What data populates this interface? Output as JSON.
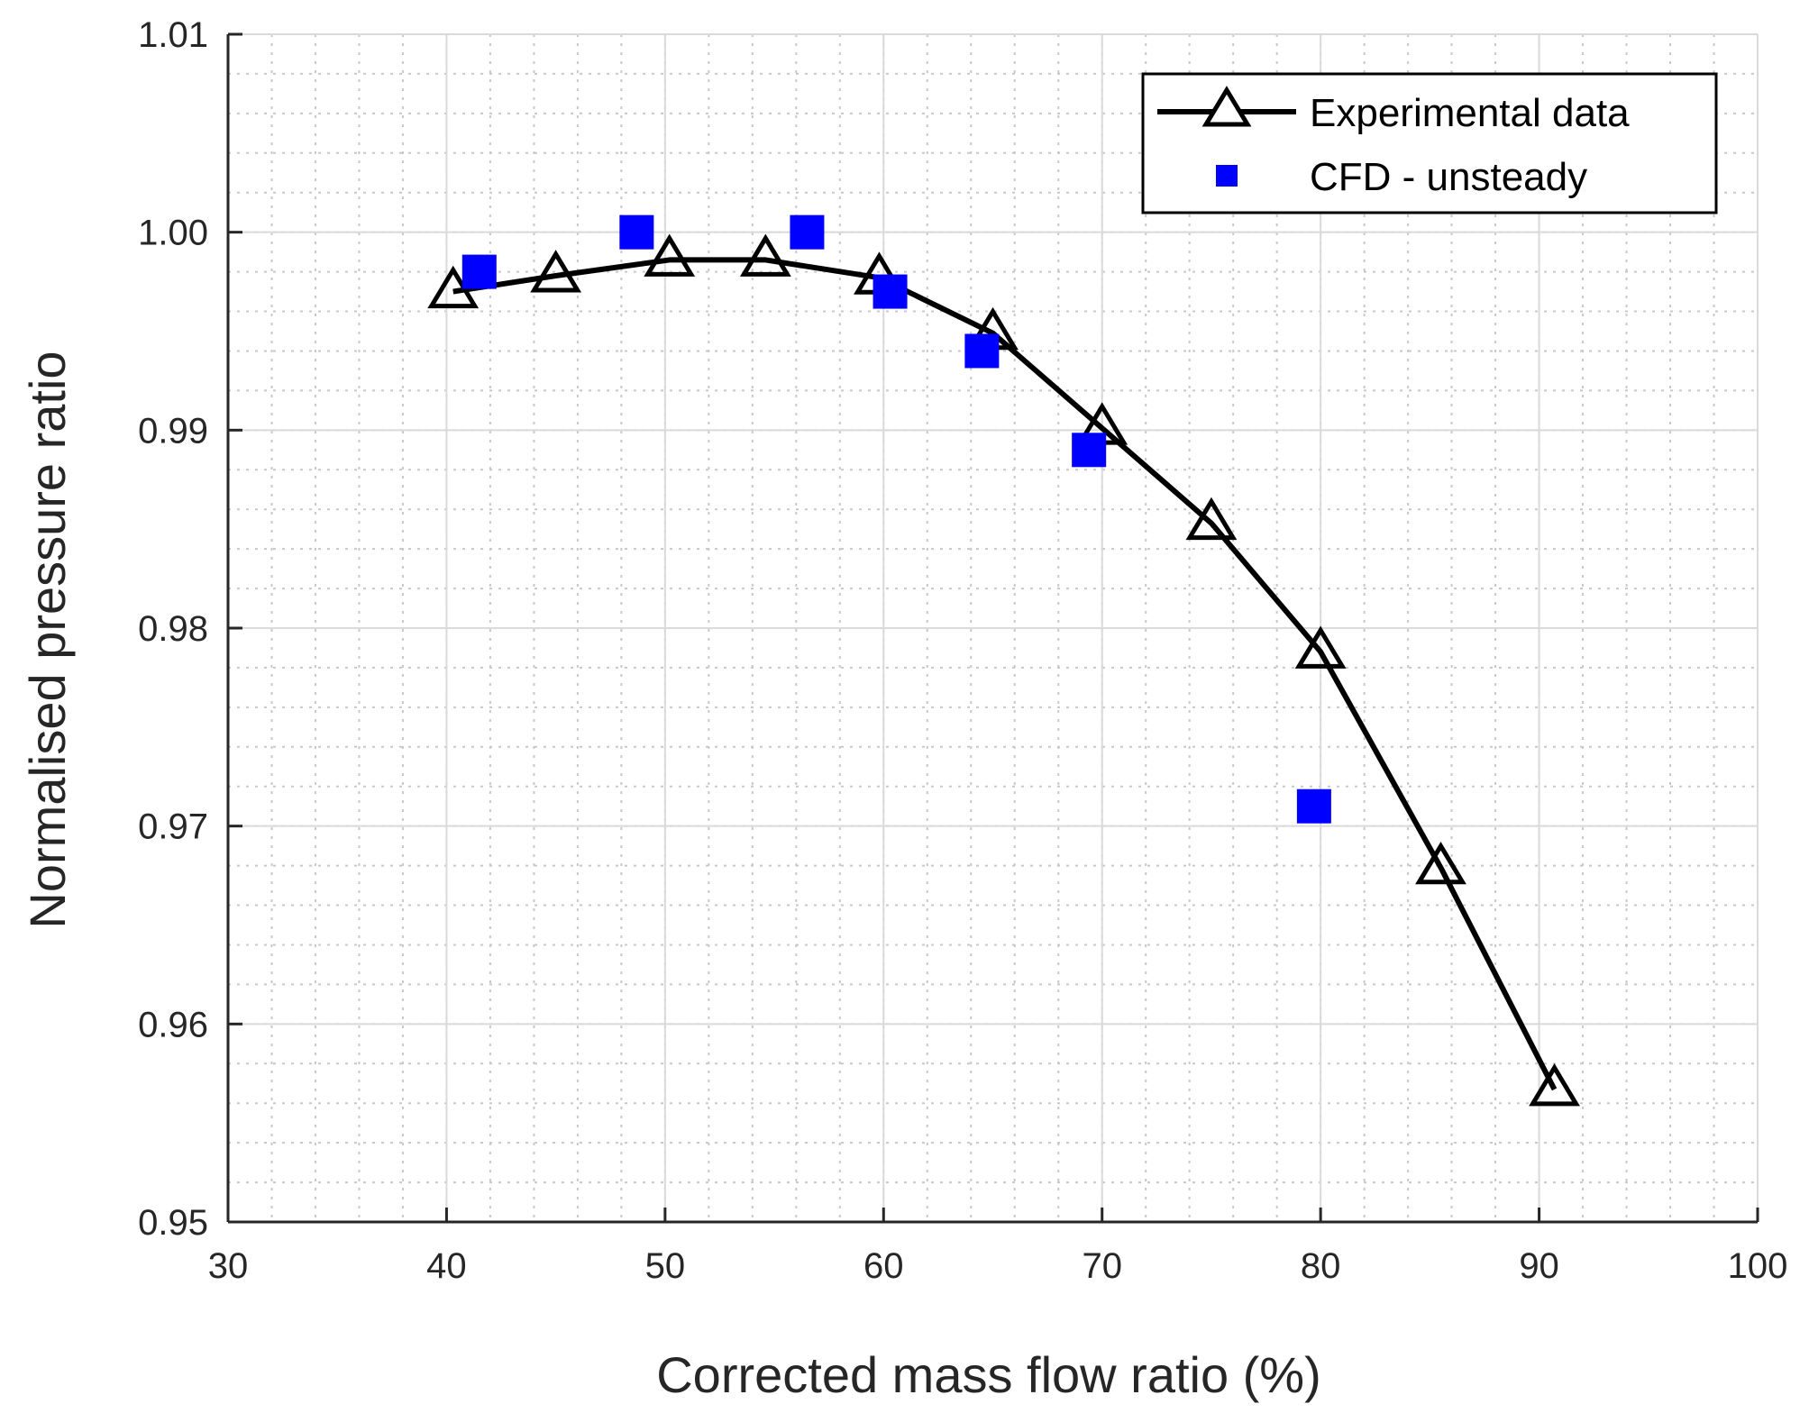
{
  "chart_data": {
    "type": "line",
    "xlabel": "Corrected mass flow ratio (%)",
    "ylabel": "Normalised pressure ratio",
    "xlim": [
      30,
      100
    ],
    "ylim": [
      0.95,
      1.01
    ],
    "xticks": [
      30,
      40,
      50,
      60,
      70,
      80,
      90,
      100
    ],
    "xtick_labels": [
      "30",
      "40",
      "50",
      "60",
      "70",
      "80",
      "90",
      "100"
    ],
    "yticks": [
      0.95,
      0.96,
      0.97,
      0.98,
      0.99,
      1.0,
      1.01
    ],
    "ytick_labels": [
      "0.95",
      "0.96",
      "0.97",
      "0.98",
      "0.99",
      "1.00",
      "1.01"
    ],
    "grid": true,
    "minor_grid": true,
    "legend_position": "top-right",
    "series": [
      {
        "name": "Experimental data",
        "style": "line-with-open-triangle-markers",
        "color": "#000000",
        "x": [
          40.3,
          45.0,
          50.2,
          54.6,
          59.8,
          65.0,
          70.0,
          75.0,
          80.0,
          85.5,
          90.7
        ],
        "y": [
          0.997,
          0.9978,
          0.9986,
          0.9986,
          0.9977,
          0.9949,
          0.9901,
          0.9853,
          0.9788,
          0.9679,
          0.9567
        ]
      },
      {
        "name": "CFD - unsteady",
        "style": "square-markers",
        "color": "#0000ff",
        "x": [
          41.5,
          48.7,
          56.5,
          60.3,
          64.5,
          69.4,
          79.7
        ],
        "y": [
          0.998,
          1.0,
          1.0,
          0.997,
          0.994,
          0.989,
          0.971
        ]
      }
    ]
  }
}
